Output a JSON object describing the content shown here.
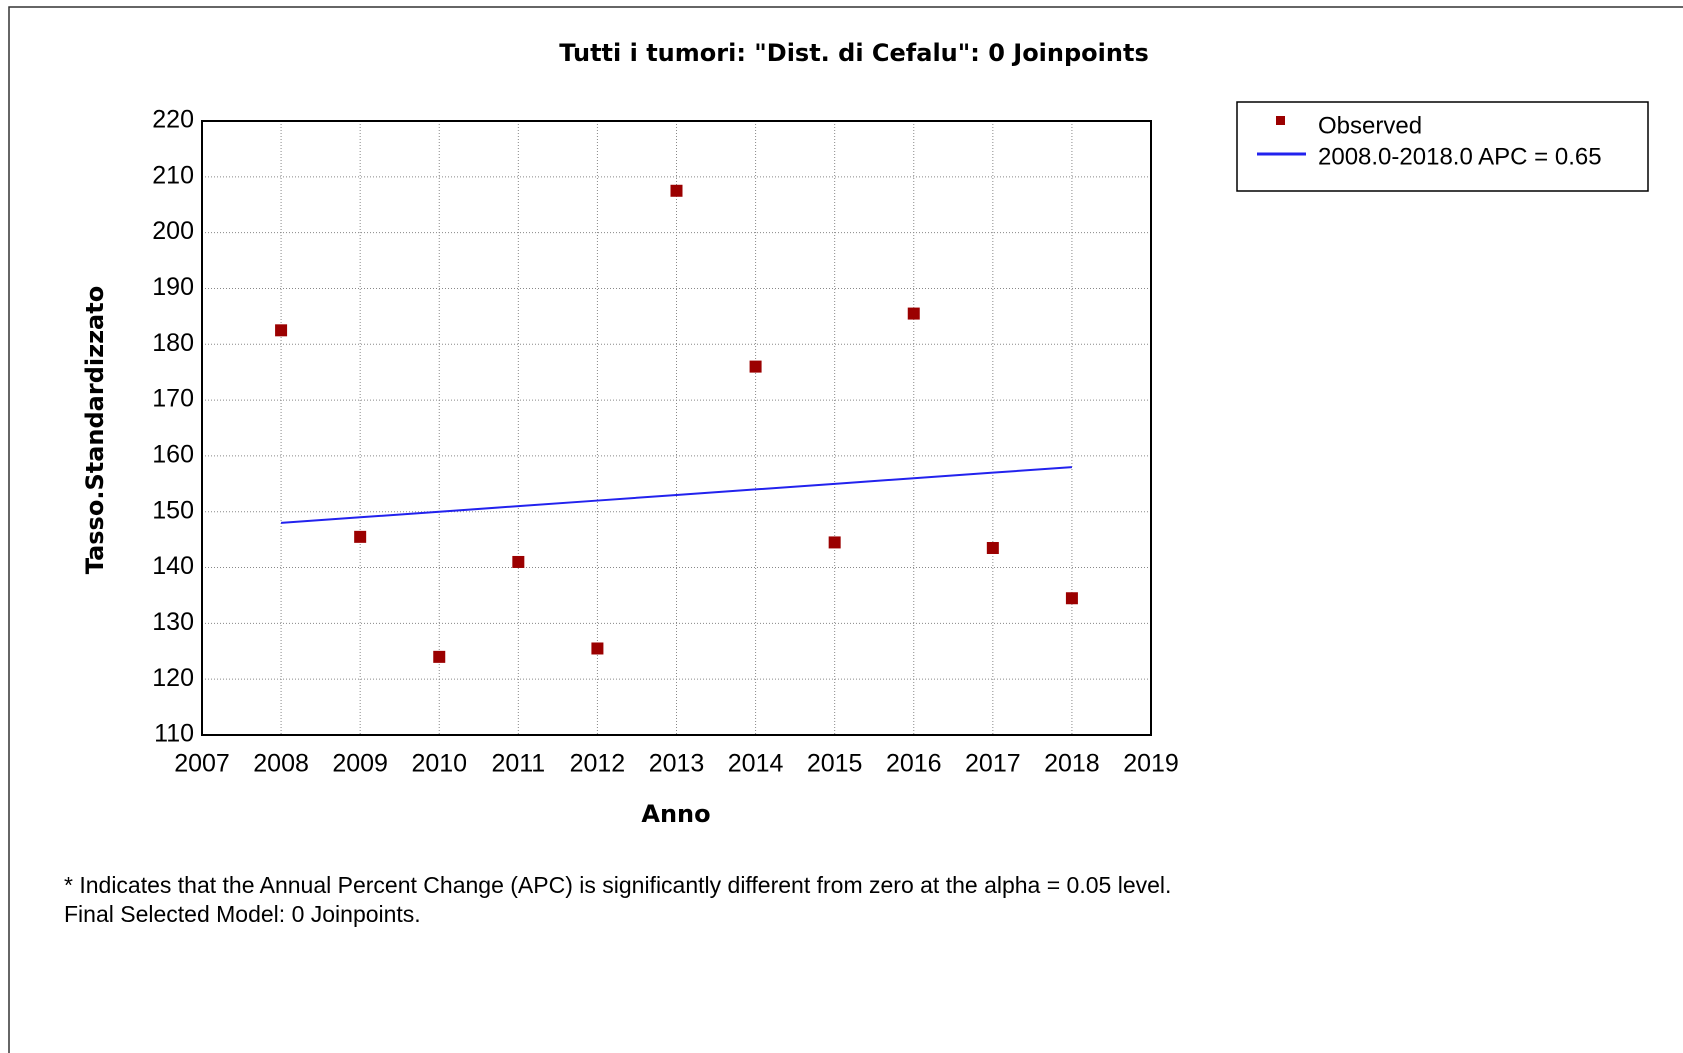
{
  "chart_data": {
    "type": "scatter",
    "title": "Tutti i tumori: \"Dist. di Cefalu\": 0 Joinpoints",
    "x_label": "Anno",
    "y_label": "Tasso.Standardizzato",
    "x": [
      2008,
      2009,
      2010,
      2011,
      2012,
      2013,
      2014,
      2015,
      2016,
      2017,
      2018
    ],
    "series": [
      {
        "name": "Observed",
        "style": "markers",
        "color": "#9b0000",
        "values": [
          182.5,
          145.5,
          124,
          141,
          125.5,
          207.5,
          176,
          144.5,
          185.5,
          143.5,
          134.5
        ]
      },
      {
        "name": "2008.0-2018.0 APC  = 0.65",
        "style": "line",
        "color": "#2222ee",
        "values": [
          148,
          149,
          150,
          151,
          152,
          153,
          154,
          155,
          156,
          157,
          158
        ]
      }
    ],
    "xlim": [
      2007,
      2019
    ],
    "xticks": [
      2007,
      2008,
      2009,
      2010,
      2011,
      2012,
      2013,
      2014,
      2015,
      2016,
      2017,
      2018,
      2019
    ],
    "ylim": [
      110,
      220
    ],
    "yticks": [
      110,
      120,
      130,
      140,
      150,
      160,
      170,
      180,
      190,
      200,
      210,
      220
    ],
    "grid": true,
    "legend": "outside-right",
    "notes": [
      "* Indicates that the Annual Percent Change (APC) is significantly different from zero at the alpha = 0.05 level.",
      "Final Selected Model: 0 Joinpoints."
    ]
  }
}
